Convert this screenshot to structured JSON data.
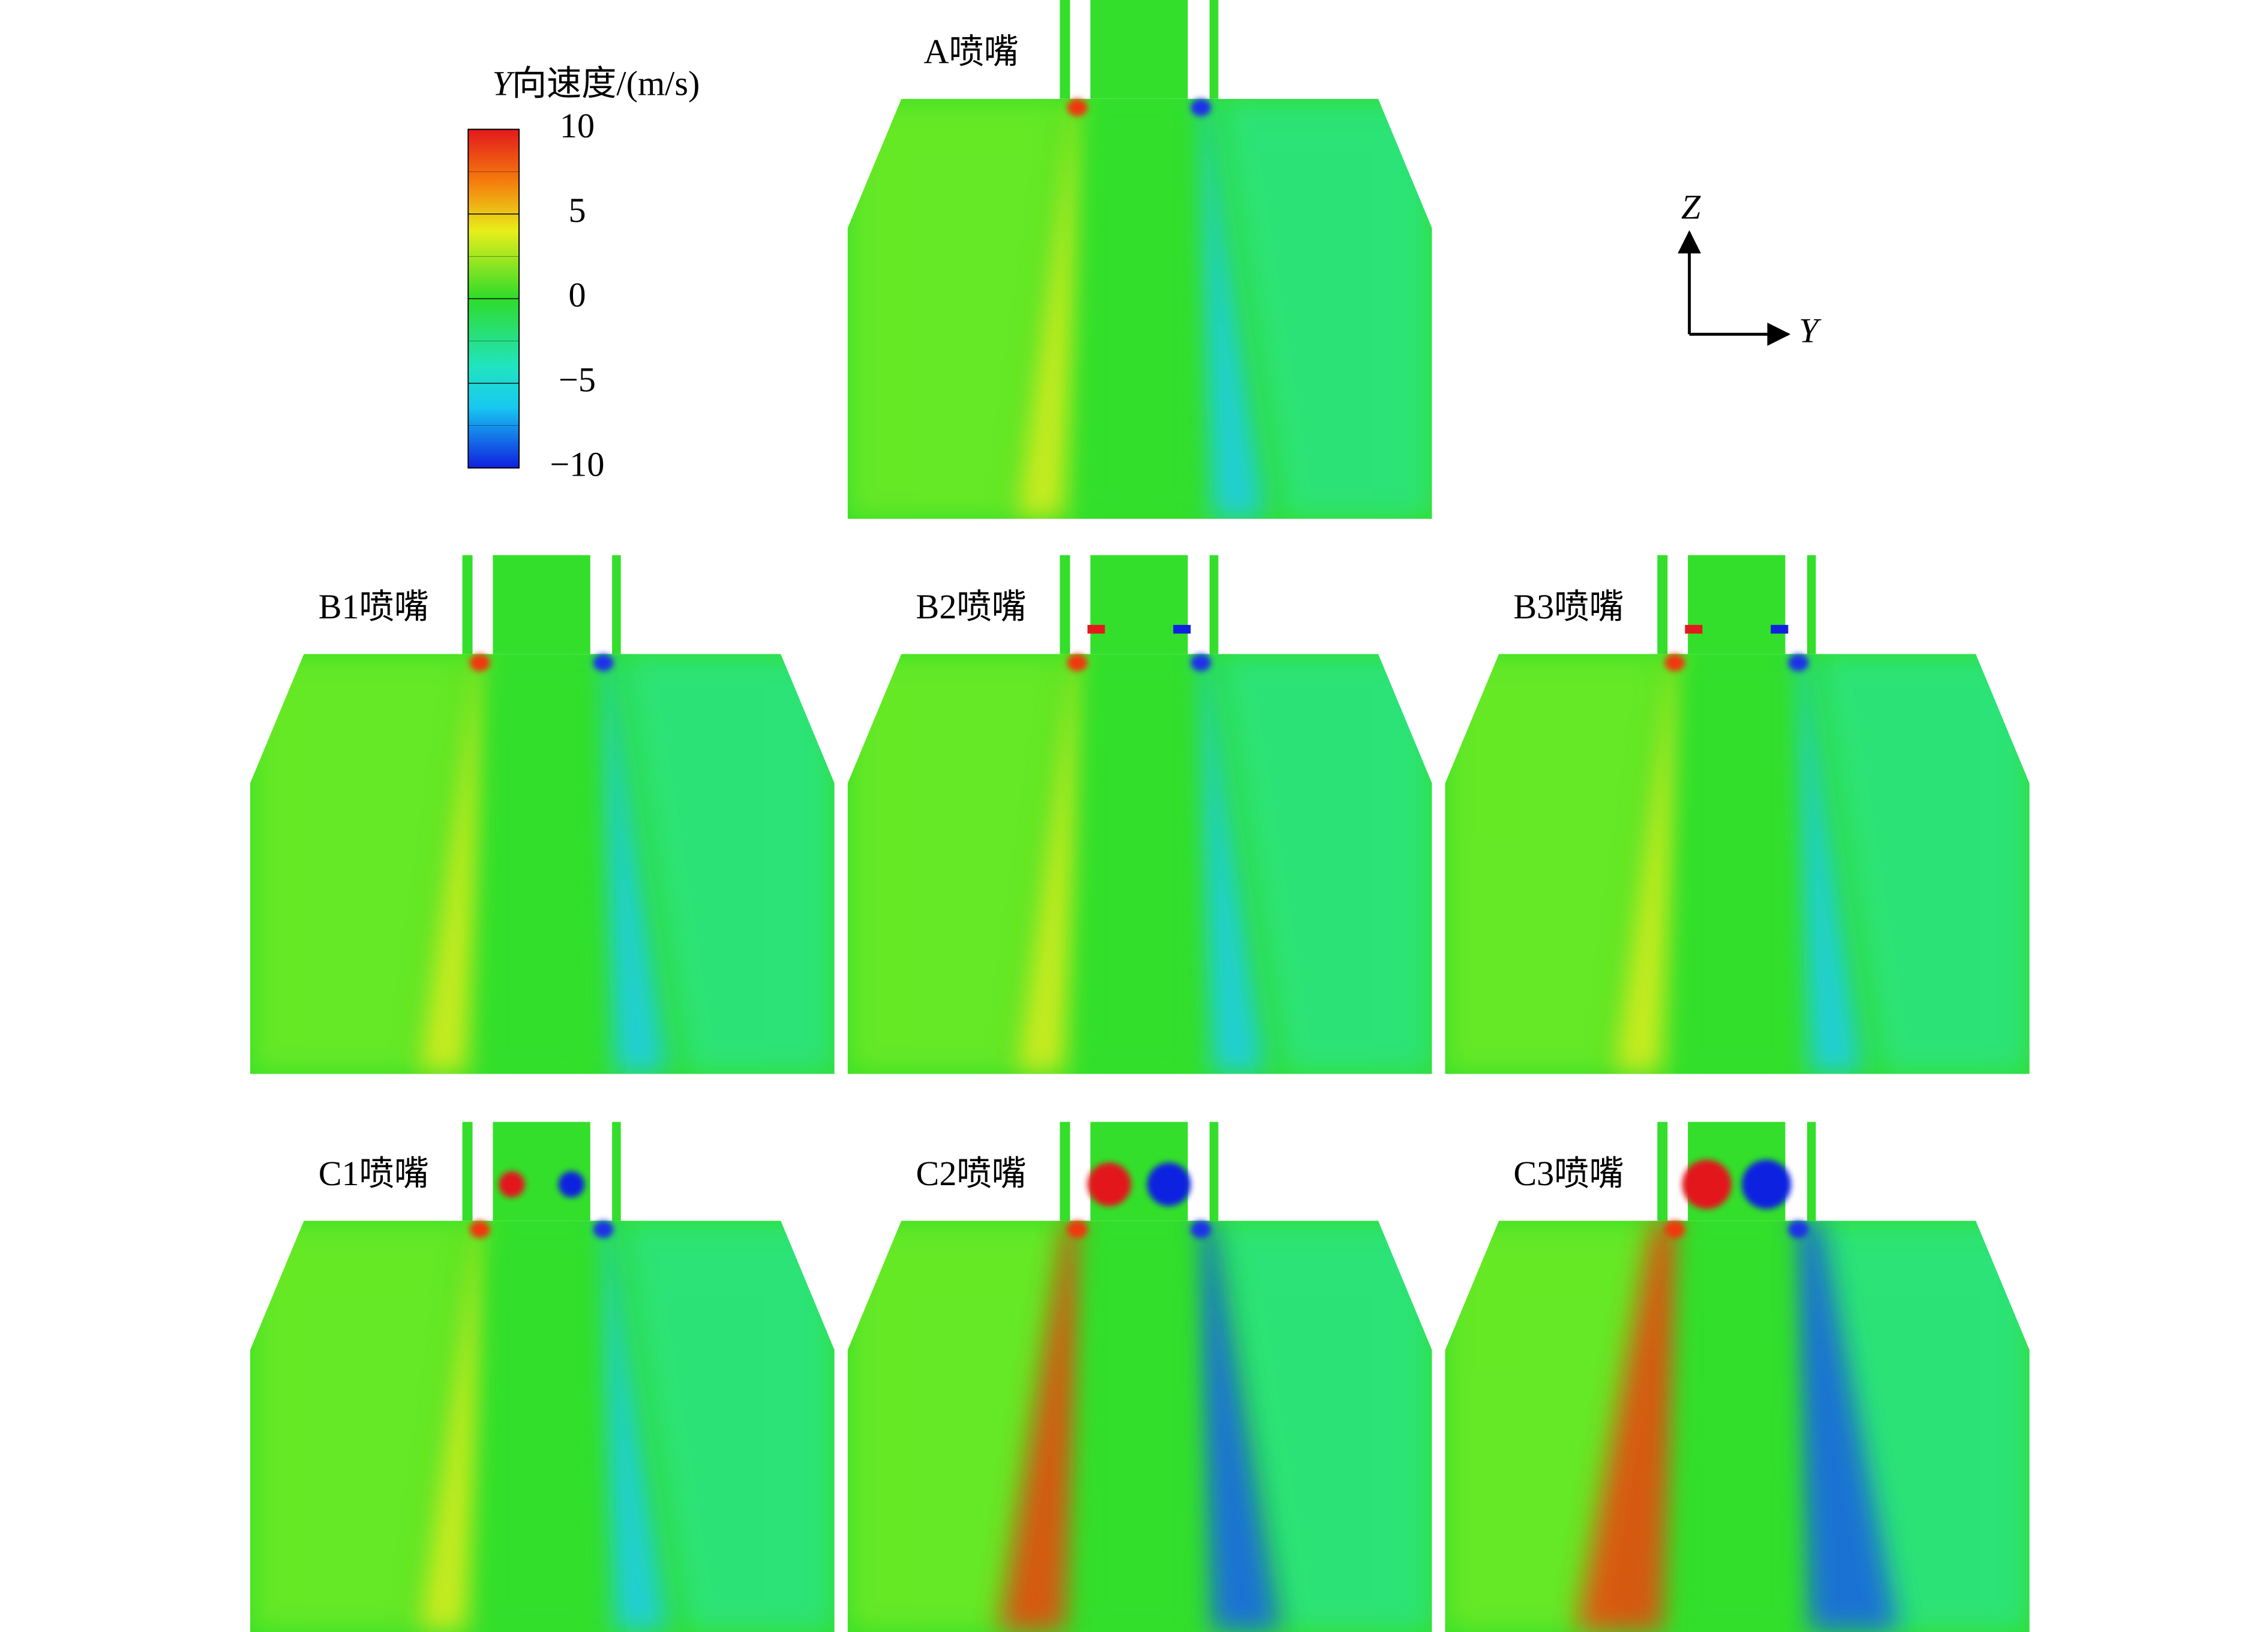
{
  "colorbar": {
    "title_var": "Y",
    "title_rest": "向速度/(m/s)",
    "ticks": [
      10,
      5,
      0,
      {
        "value": -5,
        "label": "−5"
      },
      {
        "value": -10,
        "label": "−10"
      }
    ]
  },
  "panels": [
    {
      "label": "A喷嘴"
    },
    {
      "label": "B1喷嘴"
    },
    {
      "label": "B2喷嘴"
    },
    {
      "label": "B3喷嘴"
    },
    {
      "label": "C1喷嘴"
    },
    {
      "label": "C2喷嘴"
    },
    {
      "label": "C3喷嘴"
    }
  ],
  "axes": {
    "vertical": "Z",
    "horizontal": "Y"
  }
}
